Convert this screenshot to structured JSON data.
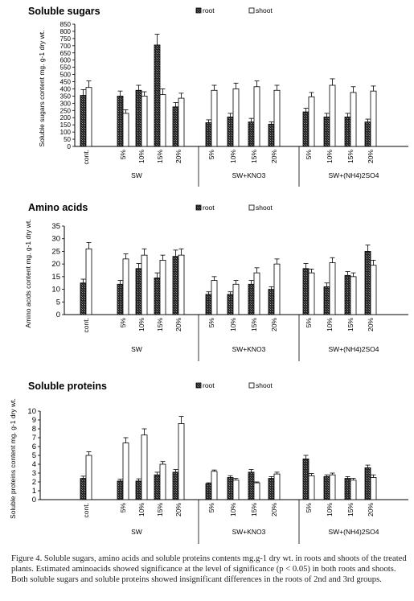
{
  "caption": "Figure 4. Soluble sugars, amino acids and soluble proteins contents mg.g-1 dry wt. in roots and shoots of the treated plants. Estimated aminoacids showed significance at the level of significance (p < 0.05) in both roots and shoots. Both soluble sugars and soluble proteins showed insignificant differences in the roots of 2nd and 3rd groups.",
  "colors": {
    "root_fill": "#2b2b2b",
    "shoot_fill": "#ffffff",
    "axis": "#000000"
  },
  "chart_data": [
    {
      "type": "bar",
      "title": "Soluble sugars",
      "ylabel": "Soluble sugars content  mg. g-1 dry wt.",
      "ylim": [
        0,
        850
      ],
      "yticks": [
        0,
        50,
        100,
        150,
        200,
        250,
        300,
        350,
        400,
        450,
        500,
        550,
        600,
        650,
        700,
        750,
        800,
        850
      ],
      "legend_position": "top-right",
      "groups": [
        "SW",
        "SW+KNO3",
        "SW+(NH4)2SO4"
      ],
      "categories": [
        "cont.",
        "5%",
        "10%",
        "15%",
        "20%",
        "5%",
        "10%",
        "15%",
        "20%",
        "5%",
        "10%",
        "15%",
        "20%"
      ],
      "series": [
        {
          "name": "root",
          "values": [
            355,
            350,
            390,
            705,
            275,
            165,
            205,
            170,
            155,
            240,
            205,
            205,
            170
          ],
          "errors": [
            40,
            35,
            35,
            75,
            30,
            20,
            25,
            25,
            15,
            25,
            25,
            25,
            20
          ]
        },
        {
          "name": "shoot",
          "values": [
            410,
            230,
            350,
            360,
            335,
            390,
            400,
            415,
            390,
            345,
            425,
            375,
            385
          ],
          "errors": [
            45,
            25,
            30,
            40,
            35,
            35,
            40,
            40,
            35,
            30,
            45,
            40,
            35
          ]
        }
      ]
    },
    {
      "type": "bar",
      "title": "Amino acids",
      "ylabel": "Amino acids content  mg. g-1 dry wt.",
      "ylim": [
        0,
        35
      ],
      "yticks": [
        0,
        5,
        10,
        15,
        20,
        25,
        30,
        35
      ],
      "legend_position": "top-right",
      "groups": [
        "SW",
        "SW+KNO3",
        "SW+(NH4)2SO4"
      ],
      "categories": [
        "cont.",
        "5%",
        "10%",
        "15%",
        "20%",
        "5%",
        "10%",
        "15%",
        "20%",
        "5%",
        "10%",
        "15%",
        "20%"
      ],
      "series": [
        {
          "name": "root",
          "values": [
            12.5,
            12,
            18.2,
            14.5,
            23,
            8,
            8,
            12,
            10,
            18.2,
            11,
            15.5,
            25
          ],
          "errors": [
            1.5,
            1.5,
            2,
            2,
            2.5,
            1,
            1,
            1.5,
            1,
            2,
            1.5,
            1.5,
            2.5
          ]
        },
        {
          "name": "shoot",
          "values": [
            26,
            22,
            23.5,
            21.5,
            23.5,
            13.5,
            12,
            16.5,
            20,
            16.5,
            20.5,
            15,
            19.5
          ],
          "errors": [
            2.5,
            2,
            2.5,
            2,
            2.5,
            1.5,
            1.5,
            2,
            2,
            1.5,
            2,
            1.5,
            2
          ]
        }
      ]
    },
    {
      "type": "bar",
      "title": "Soluble proteins",
      "ylabel": "Soluble proteins content mg. g-1 dry wt.",
      "ylim": [
        0,
        10
      ],
      "yticks": [
        0,
        1,
        2,
        3,
        4,
        5,
        6,
        7,
        8,
        9,
        10
      ],
      "legend_position": "top-right",
      "groups": [
        "SW",
        "SW+KNO3",
        "SW+(NH4)2SO4"
      ],
      "categories": [
        "cont.",
        "5%",
        "10%",
        "15%",
        "20%",
        "5%",
        "10%",
        "15%",
        "20%",
        "5%",
        "10%",
        "15%",
        "20%"
      ],
      "series": [
        {
          "name": "root",
          "values": [
            2.4,
            2.1,
            2.1,
            2.8,
            3.1,
            1.8,
            2.5,
            3.1,
            2.4,
            4.6,
            2.6,
            2.4,
            3.6
          ],
          "errors": [
            0.25,
            0.2,
            0.25,
            0.3,
            0.3,
            0.1,
            0.2,
            0.3,
            0.2,
            0.4,
            0.2,
            0.2,
            0.3
          ]
        },
        {
          "name": "shoot",
          "values": [
            5,
            6.4,
            7.3,
            4,
            8.6,
            3.2,
            2.2,
            1.9,
            2.9,
            2.7,
            2.8,
            2.2,
            2.5
          ],
          "errors": [
            0.4,
            0.6,
            0.7,
            0.3,
            0.8,
            0.15,
            0.2,
            0.1,
            0.2,
            0.25,
            0.2,
            0.2,
            0.3
          ]
        }
      ]
    }
  ]
}
